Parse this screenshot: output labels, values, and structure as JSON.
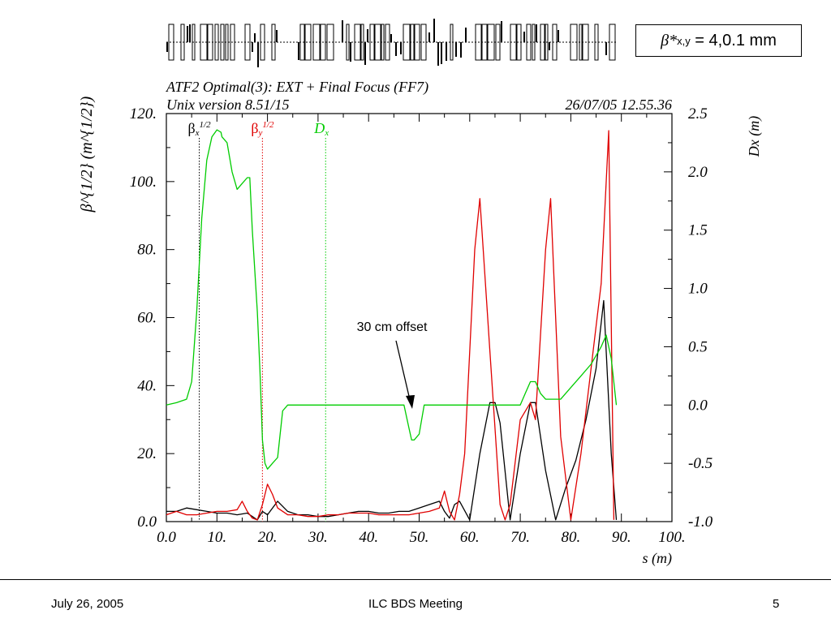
{
  "beta_box": {
    "symbol": "β*",
    "subscript": "x,y",
    "value": "= 4,0.1 mm"
  },
  "footer": {
    "date": "July 26, 2005",
    "meeting": "ILC BDS Meeting",
    "page": "5"
  },
  "annotation": "30 cm offset",
  "chart_data": {
    "type": "line",
    "title": "ATF2 Optimal(3): EXT + Final Focus (FF7)",
    "subtitle_left": "Unix version 8.51/15",
    "subtitle_right": "26/07/05  12.55.36",
    "xlabel": "s (m)",
    "ylabel": "β^{1/2} (m^{1/2})",
    "ylabel_right": "Dx (m)",
    "xlim": [
      0,
      100
    ],
    "ylim": [
      0,
      120
    ],
    "ylim_right": [
      -1.0,
      2.5
    ],
    "x_ticks": [
      "0.0",
      "10.",
      "20.",
      "30.",
      "40.",
      "50.",
      "60.",
      "70.",
      "80.",
      "90.",
      "100."
    ],
    "y_ticks": [
      "0.0",
      "20.",
      "40.",
      "60.",
      "80.",
      "100.",
      "120."
    ],
    "y_ticks_right": [
      "-1.0",
      "-0.5",
      "0.0",
      "0.5",
      "1.0",
      "1.5",
      "2.0",
      "2.5"
    ],
    "legend": [
      {
        "label": "βx",
        "sup": "1/2",
        "color": "#000000",
        "x": 6.5
      },
      {
        "label": "βy",
        "sup": "1/2",
        "color": "#e00000",
        "x": 19
      },
      {
        "label": "Dx",
        "sup": "",
        "color": "#00cc00",
        "x": 31.5
      }
    ],
    "series": [
      {
        "axis": "left",
        "color": "#000000",
        "x": [
          0,
          2,
          4,
          6,
          8,
          10,
          12,
          14,
          16,
          17,
          18,
          19,
          20,
          22,
          24,
          26,
          28,
          30,
          32,
          34,
          36,
          38,
          40,
          42,
          44,
          46,
          48,
          50,
          52,
          54,
          55,
          56,
          57,
          58,
          60,
          62,
          64,
          65,
          66,
          68,
          70,
          72,
          73,
          75,
          77,
          79,
          81,
          83,
          85,
          86.5,
          87,
          88,
          89
        ],
        "y": [
          3,
          3,
          4,
          3.5,
          3,
          2.5,
          2.5,
          2,
          2.5,
          1.5,
          0.5,
          3,
          2,
          6,
          3,
          2,
          2,
          1.5,
          1.5,
          2,
          2.5,
          3,
          3,
          2.5,
          2.5,
          3,
          3,
          4,
          5,
          6,
          3,
          1,
          5,
          6,
          0.5,
          20,
          35,
          35,
          29,
          0.5,
          20,
          35,
          35,
          15,
          0.5,
          10,
          18,
          30,
          45,
          65,
          50,
          20,
          0.5
        ]
      },
      {
        "axis": "left",
        "color": "#e00000",
        "x": [
          0,
          2,
          4,
          6,
          8,
          10,
          12,
          14,
          15,
          16,
          17,
          18,
          19,
          20,
          21,
          22,
          24,
          26,
          28,
          30,
          32,
          34,
          36,
          38,
          40,
          42,
          44,
          46,
          48,
          50,
          52,
          54,
          55,
          56,
          57,
          58,
          59,
          61,
          62,
          64,
          66,
          67,
          68,
          70,
          72,
          73,
          75,
          76,
          78,
          80,
          82,
          84,
          86,
          87.5,
          88.5
        ],
        "y": [
          2,
          3,
          2,
          2,
          2.5,
          3,
          3,
          3.5,
          6,
          3,
          1,
          0.5,
          5,
          11,
          8,
          4,
          2,
          2,
          1.5,
          1.5,
          2,
          2,
          2.5,
          2.5,
          2.5,
          2,
          2,
          2,
          2,
          2.5,
          3,
          4,
          9,
          3,
          0.5,
          8,
          20,
          80,
          95,
          50,
          5,
          0.5,
          5,
          30,
          35,
          30,
          80,
          95,
          25,
          0.5,
          20,
          45,
          70,
          115,
          0.5
        ]
      },
      {
        "axis": "right",
        "color": "#00cc00",
        "x": [
          0,
          2,
          4,
          5,
          6,
          7,
          8,
          9,
          10,
          10.8,
          11,
          12,
          13,
          14,
          15,
          16,
          16.5,
          17,
          18,
          18.5,
          19,
          19.5,
          20,
          21,
          22,
          23,
          24,
          26,
          28,
          30,
          32,
          34,
          36,
          38,
          40,
          42,
          44,
          46,
          47,
          48,
          48.5,
          49,
          50,
          51,
          52,
          54,
          56,
          58,
          60,
          62,
          64,
          66,
          68,
          70,
          71,
          72,
          73,
          74,
          75,
          76,
          78,
          80,
          82,
          84,
          86,
          87,
          88,
          89
        ],
        "y": [
          0,
          0.02,
          0.05,
          0.2,
          0.8,
          1.6,
          2.1,
          2.3,
          2.36,
          2.34,
          2.3,
          2.25,
          2.0,
          1.85,
          1.9,
          1.95,
          1.95,
          1.5,
          0.8,
          0.3,
          -0.3,
          -0.5,
          -0.55,
          -0.5,
          -0.45,
          -0.05,
          0.0,
          0.0,
          0.0,
          0.0,
          0.0,
          0.0,
          0.0,
          0.0,
          0.0,
          0.0,
          0.0,
          0.0,
          0.0,
          -0.2,
          -0.3,
          -0.3,
          -0.25,
          0.0,
          0.0,
          0.0,
          0.0,
          0.0,
          0.0,
          0.0,
          0.0,
          0.0,
          0.0,
          0.0,
          0.1,
          0.2,
          0.2,
          0.1,
          0.05,
          0.05,
          0.05,
          0.15,
          0.25,
          0.35,
          0.5,
          0.6,
          0.4,
          0.0
        ]
      }
    ]
  }
}
